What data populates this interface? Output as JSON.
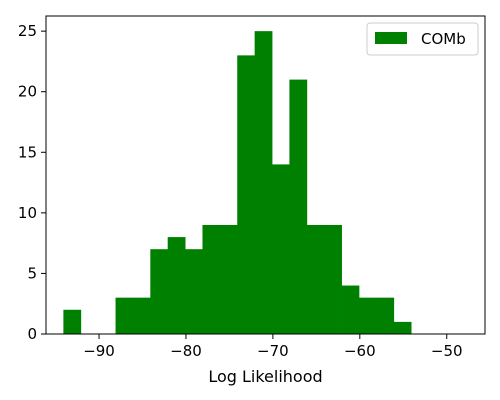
{
  "chart_data": {
    "type": "bar",
    "title": "",
    "xlabel": "Log Likelihood",
    "ylabel": "",
    "xlim": [
      -96.1,
      -45.6
    ],
    "ylim": [
      0,
      26.25
    ],
    "grid": false,
    "legend_position": "top-right",
    "xticks": [
      -90,
      -80,
      -70,
      -60,
      -50
    ],
    "yticks": [
      0,
      5,
      10,
      15,
      20,
      25
    ],
    "xtick_labels": [
      "−90",
      "−80",
      "−70",
      "−60",
      "−50"
    ],
    "ytick_labels": [
      "0",
      "5",
      "10",
      "15",
      "20",
      "25"
    ],
    "bin_edges": [
      -94.1,
      -92.1,
      -90.1,
      -88.1,
      -86.1,
      -84.1,
      -82.1,
      -80.1,
      -78.1,
      -76.1,
      -74.1,
      -72.1,
      -70.1,
      -68.1,
      -66.1,
      -64.1,
      -62.1,
      -60.1,
      -58.1,
      -56.1,
      -54.1,
      -52.1,
      -50.1,
      -48.1
    ],
    "series": [
      {
        "name": "COMb",
        "color": "#008000",
        "values": [
          2,
          0,
          0,
          3,
          3,
          7,
          8,
          7,
          9,
          9,
          23,
          25,
          14,
          21,
          9,
          9,
          4,
          3,
          3,
          1,
          0,
          0,
          0
        ]
      }
    ]
  }
}
